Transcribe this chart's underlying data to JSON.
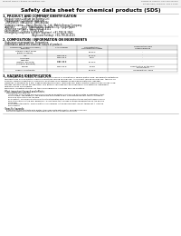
{
  "title": "Safety data sheet for chemical products (SDS)",
  "header_left": "Product Name: Lithium Ion Battery Cell",
  "header_right_line1": "Reference number: SDS-049-000010",
  "header_right_line2": "Established / Revision: Dec.7.2016",
  "section1_title": "1. PRODUCT AND COMPANY IDENTIFICATION",
  "section1_lines": [
    "· Product name: Lithium Ion Battery Cell",
    "· Product code: Cylindrical-type cell",
    "   (INR18650), (INR18650), (INR18650A)",
    "· Company name:    Sanyo Electric Co., Ltd., Mobile Energy Company",
    "· Address:          2001  Kamishinden, Sumoto-City, Hyogo, Japan",
    "· Telephone number:   +81-(799)-26-4111",
    "· Fax number:   +81-1-799-26-4129",
    "· Emergency telephone number (daytime): +81-799-26-3962",
    "                                         (Night and holiday): +81-799-26-4101"
  ],
  "section2_title": "2. COMPOSITION / INFORMATION ON INGREDIENTS",
  "section2_intro": "· Substance or preparation: Preparation",
  "section2_sub": "· Information about the chemical nature of product:",
  "table_col_headers": [
    "Component / chemical name /\nSynonym",
    "CAS number",
    "Concentration /\nConcentration range",
    "Classification and\nhazard labeling"
  ],
  "table_rows": [
    [
      "Lithium cobalt oxide\n(LiMnxCoxNiO2)",
      "-",
      "30-60%",
      "-"
    ],
    [
      "Iron",
      "7439-89-6",
      "10-20%",
      "-"
    ],
    [
      "Aluminum",
      "7429-90-5",
      "2-5%",
      "-"
    ],
    [
      "Graphite\n(Natural graphite)\n(Artificial graphite)",
      "7782-42-5\n7782-42-5",
      "10-20%",
      "-"
    ],
    [
      "Copper",
      "7440-50-8",
      "5-15%",
      "Sensitization of the skin\ngroup R42,2"
    ],
    [
      "Organic electrolyte",
      "-",
      "10-20%",
      "Inflammatory liquid"
    ]
  ],
  "section3_title": "3. HAZARDS IDENTIFICATION",
  "section3_text": [
    "For the battery can, chemical substances are stored in a hermetically sealed metal case, designed to withstand",
    "temperatures during electro-chemical reactions during normal use. As a result, during normal use, there is no",
    "physical danger of ignition or explosion and there is no danger of hazardous materials leakage.",
    "However, if exposed to a fire, added mechanical shock, decomposed, when electro-chemical dry mixes usee,",
    "the gas leakage cannot be operated. The battery cell case will be breached or fire patterns, hazardous",
    "materials may be released.",
    "Moreover, if heated strongly by the surrounding fire, solid gas may be emitted."
  ],
  "section3_most": "· Most important hazard and effects:",
  "section3_human": "Human health effects:",
  "section3_human_lines": [
    "Inhalation: The release of the electrolyte has an anesthesia action and stimulates a respiratory tract.",
    "Skin contact: The release of the electrolyte stimulates a skin. The electrolyte skin contact causes a",
    "sore and stimulation on the skin.",
    "Eye contact: The release of the electrolyte stimulates eyes. The electrolyte eye contact causes a sore",
    "and stimulation on the eye. Especially, a substance that causes a strong inflammation of the eyes is",
    "contained.",
    "Environmental effects: Since a battery cell remains in the environment, do not throw out it into the",
    "environment."
  ],
  "section3_specific": "· Specific hazards:",
  "section3_specific_lines": [
    "If the electrolyte contacts with water, it will generate detrimental hydrogen fluoride.",
    "Since the used electrolyte is inflammable liquid, do not bring close to fire."
  ],
  "bg_color": "#ffffff",
  "text_color": "#000000",
  "header_bg": "#f2f2f2",
  "table_border_color": "#888888"
}
